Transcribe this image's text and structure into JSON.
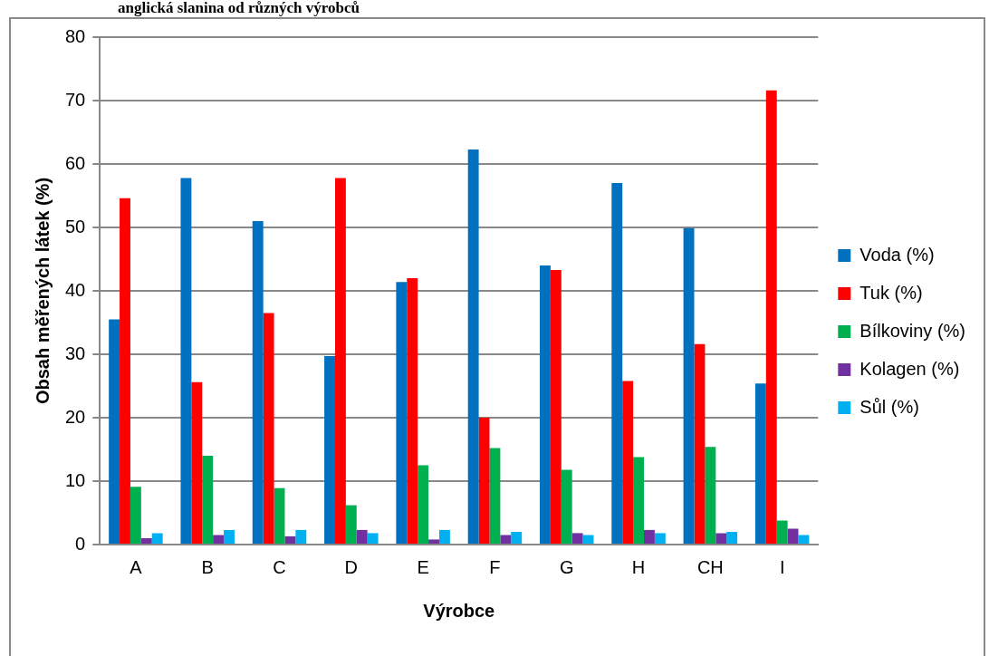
{
  "chart_data": {
    "type": "bar",
    "title": "anglická slanina od různých výrobců",
    "xlabel": "Výrobce",
    "ylabel": "Obsah měřených látek (%)",
    "categories": [
      "A",
      "B",
      "C",
      "D",
      "E",
      "F",
      "G",
      "H",
      "CH",
      "I"
    ],
    "series": [
      {
        "name": "Voda (%)",
        "color": "#0070c0",
        "values": [
          35.5,
          57.8,
          51.0,
          29.7,
          41.4,
          62.3,
          44.0,
          57.0,
          49.9,
          25.4
        ]
      },
      {
        "name": "Tuk (%)",
        "color": "#ff0000",
        "values": [
          54.6,
          25.6,
          36.5,
          57.8,
          42.0,
          20.0,
          43.3,
          25.8,
          31.6,
          71.6
        ]
      },
      {
        "name": "Bílkoviny (%)",
        "color": "#00b050",
        "values": [
          9.1,
          14.0,
          8.9,
          6.2,
          12.5,
          15.2,
          11.8,
          13.8,
          15.4,
          3.8
        ]
      },
      {
        "name": "Kolagen (%)",
        "color": "#7030a0",
        "values": [
          1.0,
          1.5,
          1.3,
          2.3,
          0.8,
          1.5,
          1.8,
          2.3,
          1.8,
          2.5
        ]
      },
      {
        "name": "Sůl (%)",
        "color": "#00b0f0",
        "values": [
          1.8,
          2.3,
          2.3,
          1.8,
          2.3,
          2.0,
          1.5,
          1.8,
          2.0,
          1.5
        ]
      }
    ],
    "ylim": [
      0,
      80
    ],
    "yticks": [
      0,
      10,
      20,
      30,
      40,
      50,
      60,
      70,
      80
    ],
    "grid": "y",
    "legend": "right"
  }
}
